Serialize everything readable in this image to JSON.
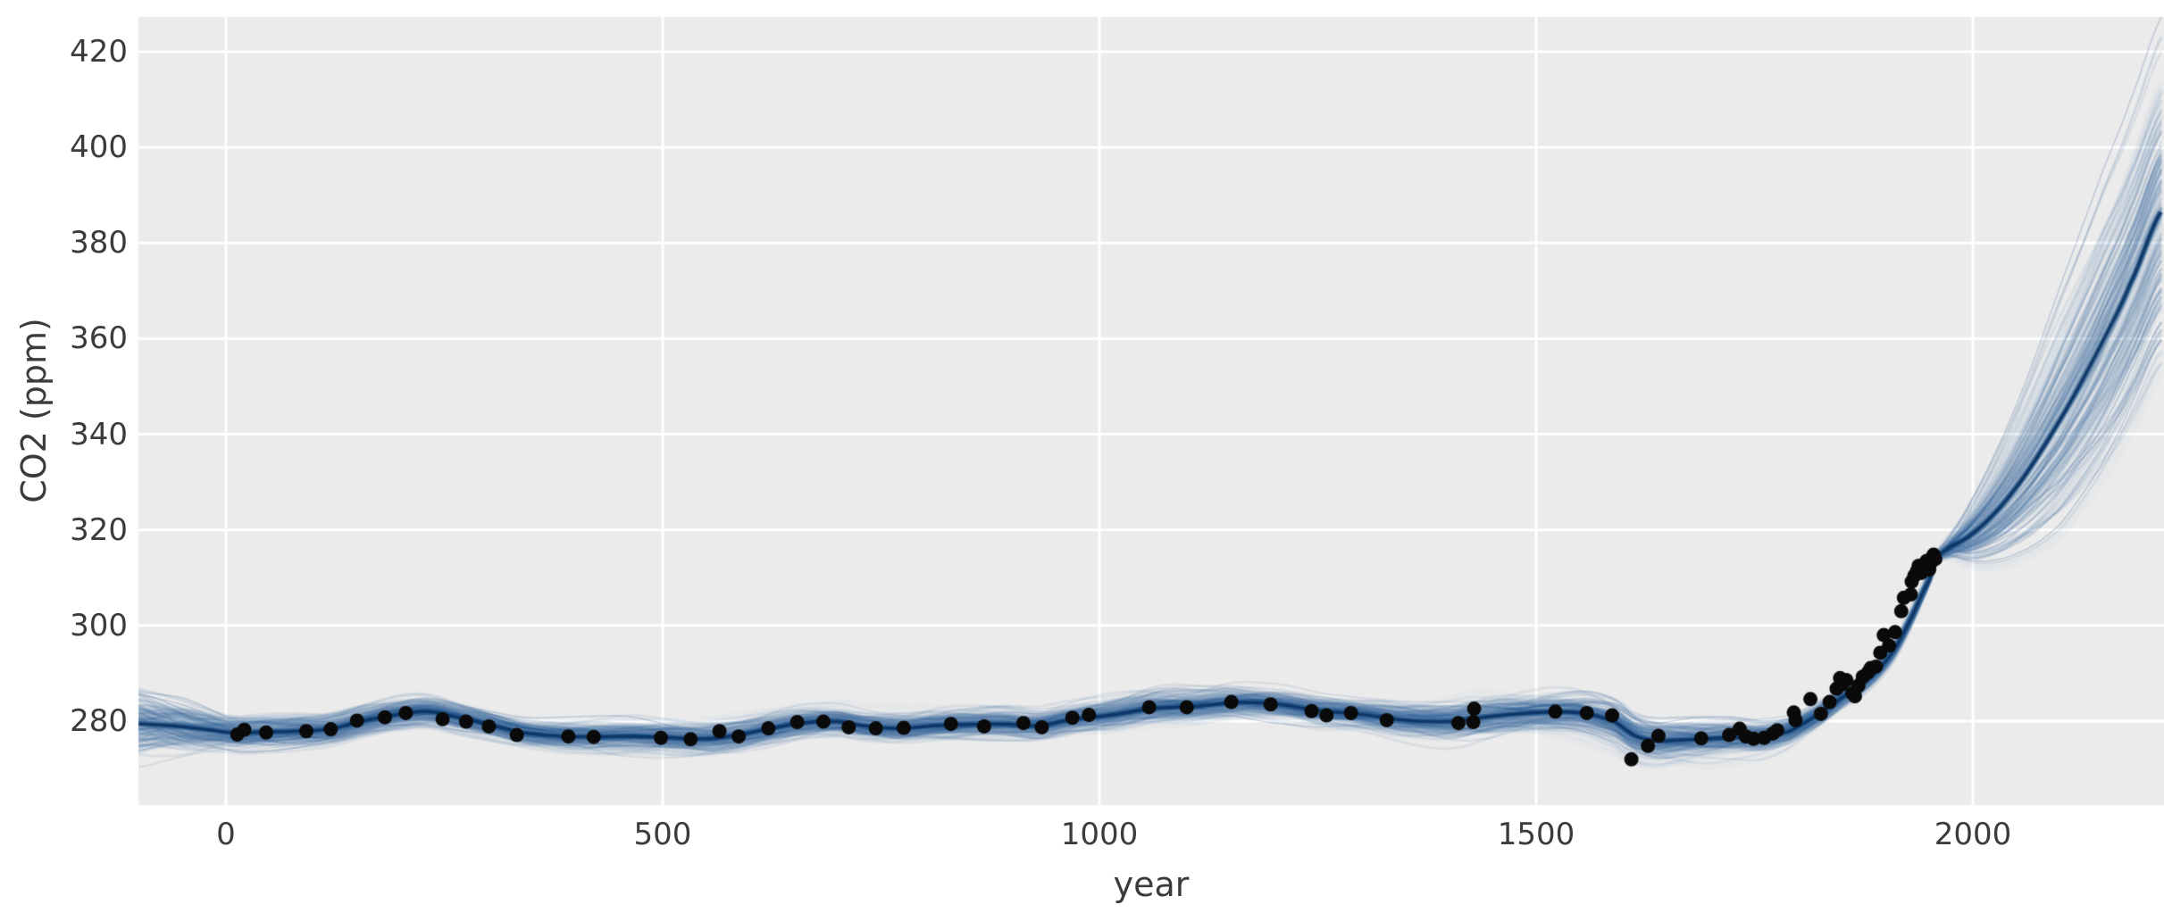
{
  "chart_data": {
    "type": "line",
    "title": "",
    "xlabel": "year",
    "ylabel": "CO2 (ppm)",
    "xlim": [
      -100,
      2219
    ],
    "ylim": [
      262.5,
      427.3
    ],
    "xticks": [
      0,
      500,
      1000,
      1500,
      2000
    ],
    "yticks": [
      280,
      300,
      320,
      340,
      360,
      380,
      400,
      420
    ],
    "grid": true,
    "legend": "none",
    "style": {
      "background_color": "#ebebeb",
      "grid_color": "#ffffff",
      "tick_color": "#3b3b3b",
      "sample_line_color": "#2a629b",
      "strand_line_color": "#7896bd",
      "mean_line_color": "#0a4a85",
      "mean_core_color": "#083058",
      "dot_color": "#0a0a0a",
      "dot_radius_px": 8,
      "n_posterior_samples": 80,
      "n_strand_samples": 15
    },
    "description": "Posterior predictive samples (blue spaghetti band) of atmospheric CO2 concentration over years -100 to 2219, with observed ice-core and instrumental data as black dots; forecast fan widens after ~1960.",
    "series": [
      {
        "name": "posterior_mean",
        "points": [
          [
            -100,
            279.4
          ],
          [
            -60,
            279.0
          ],
          [
            -20,
            278.2
          ],
          [
            13,
            277.5
          ],
          [
            40,
            277.7
          ],
          [
            80,
            277.9
          ],
          [
            120,
            278.4
          ],
          [
            160,
            280.2
          ],
          [
            205,
            281.6
          ],
          [
            235,
            281.9
          ],
          [
            270,
            280.6
          ],
          [
            300,
            279.3
          ],
          [
            340,
            277.6
          ],
          [
            380,
            276.9
          ],
          [
            420,
            276.7
          ],
          [
            460,
            276.8
          ],
          [
            500,
            276.6
          ],
          [
            545,
            276.3
          ],
          [
            580,
            276.9
          ],
          [
            620,
            278.3
          ],
          [
            660,
            279.6
          ],
          [
            700,
            279.9
          ],
          [
            730,
            279.0
          ],
          [
            770,
            278.5
          ],
          [
            810,
            279.0
          ],
          [
            850,
            279.3
          ],
          [
            890,
            279.4
          ],
          [
            930,
            279.1
          ],
          [
            970,
            280.4
          ],
          [
            1010,
            281.2
          ],
          [
            1060,
            282.6
          ],
          [
            1110,
            283.1
          ],
          [
            1160,
            283.9
          ],
          [
            1210,
            283.4
          ],
          [
            1250,
            282.2
          ],
          [
            1300,
            281.4
          ],
          [
            1350,
            280.2
          ],
          [
            1400,
            279.9
          ],
          [
            1430,
            280.6
          ],
          [
            1470,
            281.4
          ],
          [
            1520,
            281.9
          ],
          [
            1555,
            281.6
          ],
          [
            1590,
            279.8
          ],
          [
            1615,
            276.8
          ],
          [
            1640,
            275.9
          ],
          [
            1670,
            276.1
          ],
          [
            1700,
            276.3
          ],
          [
            1730,
            276.6
          ],
          [
            1760,
            276.6
          ],
          [
            1790,
            277.9
          ],
          [
            1810,
            279.9
          ],
          [
            1830,
            282.2
          ],
          [
            1850,
            284.9
          ],
          [
            1870,
            287.3
          ],
          [
            1890,
            290.4
          ],
          [
            1910,
            294.9
          ],
          [
            1930,
            301.8
          ],
          [
            1950,
            309.5
          ],
          [
            1958,
            314.2
          ],
          [
            1975,
            316.5
          ],
          [
            2000,
            319.3
          ],
          [
            2030,
            324.5
          ],
          [
            2060,
            331.5
          ],
          [
            2090,
            340.0
          ],
          [
            2120,
            349.5
          ],
          [
            2150,
            360.0
          ],
          [
            2180,
            371.5
          ],
          [
            2219,
            387.5
          ]
        ]
      },
      {
        "name": "uncertainty_sd_historical",
        "points": [
          [
            -100,
            2.7
          ],
          [
            -50,
            2.2
          ],
          [
            0,
            1.5
          ],
          [
            100,
            1.2
          ],
          [
            300,
            1.2
          ],
          [
            500,
            1.3
          ],
          [
            700,
            1.2
          ],
          [
            900,
            1.2
          ],
          [
            1100,
            1.3
          ],
          [
            1300,
            1.2
          ],
          [
            1420,
            1.7
          ],
          [
            1500,
            1.4
          ],
          [
            1600,
            1.9
          ],
          [
            1650,
            1.7
          ],
          [
            1720,
            1.4
          ],
          [
            1800,
            1.0
          ],
          [
            1870,
            0.8
          ],
          [
            1930,
            0.6
          ],
          [
            1958,
            0.4
          ],
          [
            2000,
            0.8
          ],
          [
            2100,
            1.5
          ],
          [
            2219,
            2.5
          ]
        ]
      },
      {
        "name": "uncertainty_sd_forecast",
        "points": [
          [
            -100,
            0
          ],
          [
            1958,
            0
          ],
          [
            1980,
            1.2
          ],
          [
            2000,
            2.8
          ],
          [
            2050,
            6.5
          ],
          [
            2100,
            10.5
          ],
          [
            2150,
            13.2
          ],
          [
            2219,
            15.5
          ]
        ]
      },
      {
        "name": "observations",
        "points": [
          [
            13,
            277.2
          ],
          [
            21,
            278.2
          ],
          [
            46,
            277.6
          ],
          [
            92,
            277.9
          ],
          [
            120,
            278.3
          ],
          [
            150,
            280.1
          ],
          [
            182,
            280.8
          ],
          [
            206,
            281.7
          ],
          [
            248,
            280.4
          ],
          [
            275,
            279.9
          ],
          [
            301,
            278.9
          ],
          [
            333,
            277.1
          ],
          [
            392,
            276.8
          ],
          [
            421,
            276.7
          ],
          [
            498,
            276.5
          ],
          [
            532,
            276.2
          ],
          [
            565,
            277.9
          ],
          [
            587,
            276.8
          ],
          [
            621,
            278.5
          ],
          [
            654,
            279.8
          ],
          [
            684,
            279.9
          ],
          [
            713,
            278.7
          ],
          [
            744,
            278.5
          ],
          [
            776,
            278.6
          ],
          [
            830,
            279.4
          ],
          [
            868,
            278.9
          ],
          [
            913,
            279.6
          ],
          [
            934,
            278.7
          ],
          [
            969,
            280.7
          ],
          [
            988,
            281.3
          ],
          [
            1057,
            282.9
          ],
          [
            1100,
            282.9
          ],
          [
            1151,
            284.0
          ],
          [
            1196,
            283.5
          ],
          [
            1243,
            282.1
          ],
          [
            1260,
            281.2
          ],
          [
            1288,
            281.7
          ],
          [
            1329,
            280.2
          ],
          [
            1411,
            279.6
          ],
          [
            1428,
            279.8
          ],
          [
            1429,
            282.6
          ],
          [
            1522,
            282.0
          ],
          [
            1558,
            281.7
          ],
          [
            1587,
            281.2
          ],
          [
            1609,
            272.0
          ],
          [
            1628,
            274.8
          ],
          [
            1640,
            276.9
          ],
          [
            1689,
            276.4
          ],
          [
            1721,
            277.1
          ],
          [
            1733,
            278.4
          ],
          [
            1740,
            276.8
          ],
          [
            1749,
            276.3
          ],
          [
            1761,
            276.5
          ],
          [
            1771,
            277.4
          ],
          [
            1776,
            278.1
          ],
          [
            1795,
            281.8
          ],
          [
            1797,
            280.2
          ],
          [
            1814,
            284.6
          ],
          [
            1826,
            281.5
          ],
          [
            1836,
            284.0
          ],
          [
            1844,
            286.8
          ],
          [
            1848,
            289.0
          ],
          [
            1850,
            287.7
          ],
          [
            1855,
            288.6
          ],
          [
            1862,
            285.8
          ],
          [
            1865,
            285.2
          ],
          [
            1869,
            287.4
          ],
          [
            1874,
            289.3
          ],
          [
            1880,
            290.2
          ],
          [
            1883,
            291.1
          ],
          [
            1889,
            291.4
          ],
          [
            1894,
            294.3
          ],
          [
            1898,
            298.0
          ],
          [
            1904,
            295.8
          ],
          [
            1911,
            298.6
          ],
          [
            1918,
            303.0
          ],
          [
            1921,
            305.8
          ],
          [
            1929,
            306.5
          ],
          [
            1930,
            309.2
          ],
          [
            1933,
            310.4
          ],
          [
            1936,
            311.4
          ],
          [
            1938,
            312.5
          ],
          [
            1941,
            311.0
          ],
          [
            1943,
            312.5
          ],
          [
            1947,
            313.5
          ],
          [
            1950,
            311.7
          ],
          [
            1952,
            313.2
          ],
          [
            1955,
            314.8
          ],
          [
            1957,
            313.9
          ]
        ]
      }
    ]
  }
}
